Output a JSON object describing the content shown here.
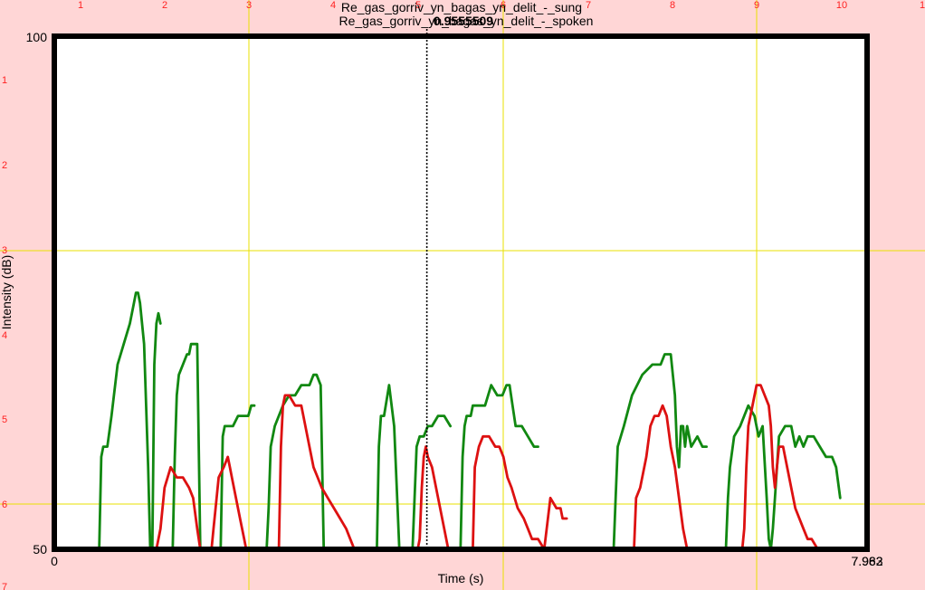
{
  "chart_data": {
    "type": "line",
    "title_lines": [
      "Re_gas_gorriv_yn_bagas_yn_delit_-_sung",
      "Re_gas_gorriv_yn_bagas_yn_delit_-_spoken"
    ],
    "cursor_label": "0.9555509",
    "xlabel": "Time (s)",
    "ylabel": "Intensity (dB)",
    "xlim": [
      0,
      7.963
    ],
    "ylim": [
      50,
      100
    ],
    "x_min_label": "0",
    "x_max_labels": [
      "7.963",
      "7.982"
    ],
    "y_min_label": "50",
    "y_max_label": "100",
    "cursor_x": 3.65,
    "ruler_top": [
      "1",
      "2",
      "3",
      "4",
      "5",
      "6",
      "7",
      "8",
      "9",
      "10",
      "1"
    ],
    "ruler_left": [
      "1",
      "2",
      "3",
      "4",
      "5",
      "6",
      "7"
    ],
    "series": [
      {
        "color": "#118811",
        "x": [
          0.44,
          0.46,
          0.48,
          0.52,
          0.56,
          0.62,
          0.68,
          0.74,
          0.78,
          0.8,
          0.82,
          0.84,
          0.88,
          0.92,
          0.94,
          0.96,
          0.98,
          1.0,
          1.02,
          1.04,
          1.16,
          1.18,
          1.2,
          1.22,
          1.26,
          1.3,
          1.32,
          1.34,
          1.36,
          1.4,
          1.43,
          1.63,
          1.65,
          1.67,
          1.7,
          1.75,
          1.8,
          1.85,
          1.9,
          1.93,
          1.96,
          2.08,
          2.1,
          2.12,
          2.16,
          2.24,
          2.3,
          2.36,
          2.42,
          2.5,
          2.54,
          2.57,
          2.61,
          2.64,
          2.66,
          2.7,
          3.16,
          3.18,
          3.2,
          3.23,
          3.28,
          3.33,
          3.38,
          3.42,
          3.47,
          3.51,
          3.55,
          3.58,
          3.62,
          3.66,
          3.7,
          3.76,
          3.82,
          3.88,
          3.92,
          3.95,
          3.98,
          4.0,
          4.02,
          4.04,
          4.08,
          4.1,
          4.12,
          4.16,
          4.22,
          4.28,
          4.34,
          4.39,
          4.43,
          4.46,
          4.49,
          4.52,
          4.58,
          4.64,
          4.7,
          4.72,
          4.74,
          5.48,
          5.5,
          5.52,
          5.58,
          5.66,
          5.76,
          5.86,
          5.94,
          5.98,
          6.02,
          6.04,
          6.08,
          6.1,
          6.12,
          6.14,
          6.16,
          6.18,
          6.2,
          6.24,
          6.3,
          6.35,
          6.39,
          6.58,
          6.6,
          6.62,
          6.66,
          6.72,
          6.8,
          6.86,
          6.9,
          6.94,
          6.98,
          7.0,
          7.02,
          7.04,
          7.06,
          7.1,
          7.16,
          7.22,
          7.26,
          7.3,
          7.34,
          7.38,
          7.44,
          7.5,
          7.56,
          7.62,
          7.66,
          7.7,
          7.72
        ],
        "y": [
          50,
          59,
          60,
          60,
          63,
          68,
          70,
          72,
          74,
          75,
          75,
          74,
          70,
          58,
          50,
          50,
          68,
          72,
          73,
          72,
          50,
          59,
          65,
          67,
          68,
          69,
          69,
          70,
          70,
          70,
          50,
          50,
          61,
          62,
          62,
          62,
          63,
          63,
          63,
          64,
          64,
          50,
          54,
          60,
          62,
          64,
          65,
          65,
          66,
          66,
          67,
          67,
          66,
          50,
          50,
          50,
          50,
          60,
          63,
          63,
          66,
          62,
          50,
          50,
          50,
          50,
          60,
          61,
          61,
          62,
          62,
          63,
          63,
          62,
          50,
          50,
          50,
          59,
          62,
          63,
          63,
          64,
          64,
          64,
          64,
          66,
          65,
          65,
          66,
          66,
          64,
          62,
          62,
          61,
          60,
          60,
          60,
          50,
          55,
          60,
          62,
          65,
          67,
          68,
          68,
          69,
          69,
          69,
          65,
          60,
          58,
          62,
          62,
          60,
          62,
          60,
          61,
          60,
          60,
          50,
          55,
          58,
          61,
          62,
          64,
          63,
          61,
          62,
          55,
          51,
          50,
          52,
          55,
          61,
          62,
          62,
          60,
          61,
          60,
          61,
          61,
          60,
          59,
          59,
          58,
          55,
          50
        ],
        "segments": [
          [
            0,
            19
          ],
          [
            20,
            30
          ],
          [
            31,
            40
          ],
          [
            41,
            54
          ],
          [
            55,
            73
          ],
          [
            74,
            96
          ],
          [
            97,
            118
          ],
          [
            119,
            145
          ]
        ]
      },
      {
        "color": "#dd1111",
        "x": [
          1.0,
          1.04,
          1.08,
          1.14,
          1.2,
          1.26,
          1.32,
          1.36,
          1.4,
          1.43,
          1.54,
          1.56,
          1.58,
          1.61,
          1.66,
          1.7,
          1.72,
          1.74,
          1.78,
          1.82,
          1.86,
          1.88,
          1.9,
          2.2,
          2.22,
          2.24,
          2.26,
          2.3,
          2.36,
          2.42,
          2.46,
          2.5,
          2.54,
          2.58,
          2.62,
          2.68,
          2.74,
          2.8,
          2.86,
          2.9,
          2.94,
          2.96,
          3.0,
          3.56,
          3.58,
          3.6,
          3.62,
          3.64,
          3.66,
          3.7,
          3.74,
          3.78,
          3.82,
          3.86,
          4.1,
          4.12,
          4.16,
          4.2,
          4.26,
          4.32,
          4.36,
          4.4,
          4.44,
          4.48,
          4.54,
          4.6,
          4.64,
          4.68,
          4.74,
          4.8,
          4.86,
          4.92,
          4.96,
          4.98,
          5.0,
          5.02,
          5.66,
          5.68,
          5.7,
          5.74,
          5.8,
          5.84,
          5.88,
          5.92,
          5.96,
          6.0,
          6.04,
          6.08,
          6.12,
          6.16,
          6.2,
          6.24,
          6.28,
          6.32,
          6.38,
          6.44,
          6.48,
          6.5,
          6.74,
          6.76,
          6.78,
          6.8,
          6.84,
          6.88,
          6.92,
          6.96,
          7.0,
          7.02,
          7.04,
          7.06,
          7.08,
          7.1,
          7.14,
          7.18,
          7.22,
          7.26,
          7.3,
          7.34,
          7.38,
          7.42,
          7.48,
          7.52,
          7.54
        ],
        "y": [
          50,
          52,
          56,
          58,
          57,
          57,
          56,
          55,
          52,
          50,
          50,
          52,
          54,
          57,
          58,
          59,
          58,
          57,
          55,
          53,
          51,
          50,
          50,
          50,
          60,
          64,
          65,
          65,
          64,
          64,
          62,
          60,
          58,
          57,
          56,
          55,
          54,
          53,
          52,
          51,
          50,
          50,
          50,
          50,
          51,
          56,
          59,
          60,
          59,
          58,
          56,
          54,
          52,
          50,
          50,
          58,
          60,
          61,
          61,
          60,
          60,
          59,
          57,
          56,
          54,
          53,
          52,
          51,
          51,
          50,
          55,
          54,
          54,
          53,
          53,
          53,
          50,
          50,
          55,
          56,
          59,
          62,
          63,
          63,
          64,
          63,
          60,
          58,
          55,
          52,
          50,
          50,
          50,
          50,
          50,
          50,
          50,
          50,
          50,
          52,
          58,
          62,
          64,
          66,
          66,
          65,
          64,
          62,
          58,
          56,
          58,
          60,
          60,
          58,
          56,
          54,
          53,
          52,
          51,
          51,
          50,
          50,
          50
        ],
        "segments": [
          [
            0,
            9
          ],
          [
            10,
            22
          ],
          [
            23,
            42
          ],
          [
            43,
            53
          ],
          [
            54,
            75
          ],
          [
            76,
            97
          ],
          [
            98,
            121
          ]
        ]
      }
    ]
  }
}
